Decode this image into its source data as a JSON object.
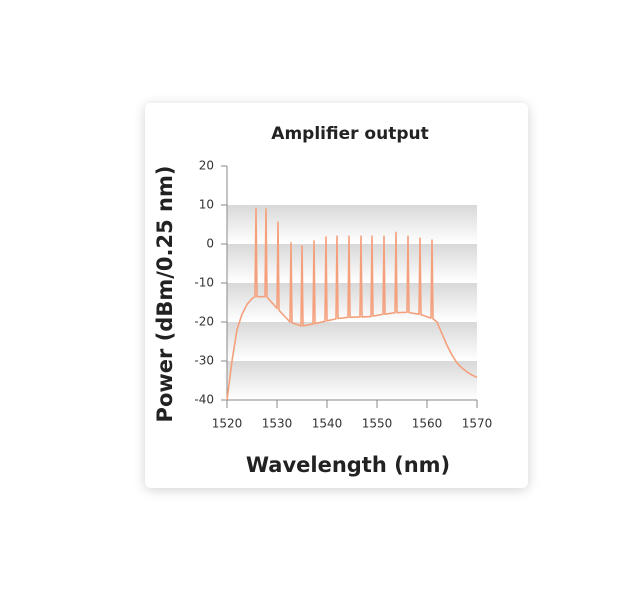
{
  "chart_data": {
    "type": "line",
    "title": "Amplifier output",
    "x_label": "Wavelength (nm)",
    "y_label": "Power (dBm/0.25 nm)",
    "x": [
      1520,
      1521,
      1522,
      1523,
      1524,
      1525,
      1525.6,
      1525.8,
      1526,
      1527.6,
      1527.8,
      1528,
      1530,
      1530.2,
      1530.4,
      1532.6,
      1532.8,
      1533,
      1534.8,
      1535,
      1535.2,
      1537.2,
      1537.4,
      1537.6,
      1539.6,
      1539.8,
      1540,
      1541.8,
      1542,
      1542.2,
      1544.2,
      1544.4,
      1544.6,
      1546.6,
      1546.8,
      1547,
      1548.8,
      1549,
      1549.2,
      1551.2,
      1551.4,
      1551.6,
      1553.6,
      1553.8,
      1554,
      1556,
      1556.2,
      1556.4,
      1558.4,
      1558.6,
      1558.8,
      1560.8,
      1561,
      1561.2,
      1562,
      1563,
      1564,
      1565,
      1566,
      1567,
      1568,
      1569,
      1570
    ],
    "series": [
      {
        "color": "#f4a07c",
        "values": [
          -40,
          -30,
          -22,
          -18,
          -15.5,
          -14,
          -13.5,
          9.2,
          -13.5,
          -13.5,
          9,
          -13.6,
          -16.5,
          5.6,
          -17,
          -20,
          0.3,
          -20.2,
          -21,
          -0.5,
          -21,
          -20.5,
          0.8,
          -20.4,
          -19.8,
          1.8,
          -19.7,
          -19.2,
          2,
          -19.1,
          -18.8,
          2,
          -18.8,
          -18.7,
          2,
          -18.7,
          -18.6,
          2,
          -18.5,
          -18,
          2,
          -18,
          -17.6,
          3,
          -17.6,
          -17.5,
          2,
          -17.6,
          -18,
          1.5,
          -18.1,
          -19,
          1,
          -19.2,
          -20,
          -23,
          -26,
          -28.5,
          -30.5,
          -31.8,
          -32.8,
          -33.6,
          -34.2
        ]
      }
    ],
    "xlim": [
      1520,
      1570
    ],
    "xticks": [
      1520,
      1530,
      1540,
      1550,
      1560,
      1570
    ],
    "ylim": [
      -40,
      20
    ],
    "yticks": [
      20,
      10,
      0,
      -10,
      -20,
      -30,
      -40
    ],
    "grid": true
  }
}
